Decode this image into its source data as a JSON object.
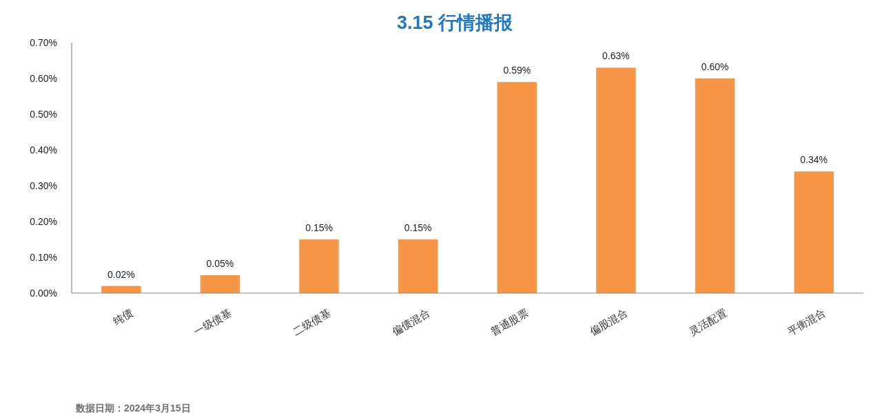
{
  "chart_data": {
    "type": "bar",
    "title": "3.15 行情播报",
    "categories": [
      "纯债",
      "一级债基",
      "二级债基",
      "偏债混合",
      "普通股票",
      "偏股混合",
      "灵活配置",
      "平衡混合"
    ],
    "values": [
      0.02,
      0.05,
      0.15,
      0.15,
      0.59,
      0.63,
      0.6,
      0.34
    ],
    "value_labels": [
      "0.02%",
      "0.05%",
      "0.15%",
      "0.15%",
      "0.59%",
      "0.63%",
      "0.60%",
      "0.34%"
    ],
    "color": "#f79646",
    "ylim": [
      0,
      0.7
    ],
    "yticks": [
      {
        "value": 0,
        "label": "0.00%"
      },
      {
        "value": 0.1,
        "label": "0.10%"
      },
      {
        "value": 0.2,
        "label": "0.20%"
      },
      {
        "value": 0.3,
        "label": "0.30%"
      },
      {
        "value": 0.4,
        "label": "0.40%"
      },
      {
        "value": 0.5,
        "label": "0.50%"
      },
      {
        "value": 0.6,
        "label": "0.60%"
      },
      {
        "value": 0.7,
        "label": "0.70%"
      }
    ],
    "annotations": [
      "数据日期：2024年3月15日"
    ]
  }
}
